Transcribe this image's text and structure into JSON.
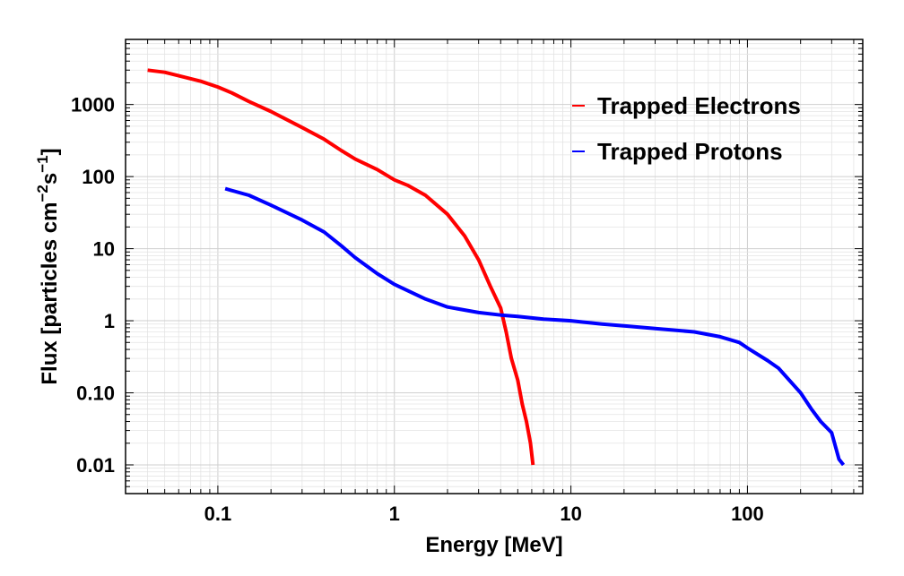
{
  "chart_data": {
    "type": "line",
    "title": "",
    "xlabel": "Energy [MeV]",
    "ylabel": "Flux [particles cm",
    "ylabel_sup1": "−2",
    "ylabel_mid": "s",
    "ylabel_sup2": "−1",
    "ylabel_end": "]",
    "x_scale": "log",
    "y_scale": "log",
    "xlim": [
      0.03,
      450
    ],
    "ylim": [
      0.004,
      8000
    ],
    "grid": true,
    "legend_position": "top-right",
    "x_ticks": [
      {
        "value": 0.1,
        "label": "0.1"
      },
      {
        "value": 1,
        "label": "1"
      },
      {
        "value": 10,
        "label": "10"
      },
      {
        "value": 100,
        "label": "100"
      }
    ],
    "y_ticks": [
      {
        "value": 0.01,
        "label": "0.01"
      },
      {
        "value": 0.1,
        "label": "0.10"
      },
      {
        "value": 1,
        "label": "1"
      },
      {
        "value": 10,
        "label": "10"
      },
      {
        "value": 100,
        "label": "100"
      },
      {
        "value": 1000,
        "label": "1000"
      }
    ],
    "series": [
      {
        "name": "Trapped Electrons",
        "color": "#ff0000",
        "x": [
          0.04,
          0.05,
          0.06,
          0.08,
          0.1,
          0.12,
          0.15,
          0.2,
          0.3,
          0.4,
          0.5,
          0.6,
          0.8,
          1.0,
          1.2,
          1.5,
          2.0,
          2.5,
          3.0,
          3.5,
          4.0,
          4.3,
          4.6,
          5.0,
          5.3,
          5.6,
          5.9,
          6.1
        ],
        "values": [
          3000,
          2800,
          2500,
          2100,
          1750,
          1450,
          1100,
          800,
          480,
          330,
          230,
          175,
          125,
          90,
          75,
          55,
          30,
          15,
          7,
          3,
          1.5,
          0.7,
          0.3,
          0.15,
          0.07,
          0.04,
          0.02,
          0.01
        ]
      },
      {
        "name": "Trapped Protons",
        "color": "#0000ff",
        "x": [
          0.11,
          0.15,
          0.2,
          0.3,
          0.4,
          0.5,
          0.6,
          0.8,
          1.0,
          1.5,
          2.0,
          3.0,
          4.0,
          5.0,
          7.0,
          10,
          15,
          20,
          30,
          50,
          70,
          90,
          100,
          130,
          150,
          200,
          230,
          260,
          300,
          330,
          350
        ],
        "values": [
          68,
          55,
          40,
          25,
          17,
          11,
          7.5,
          4.5,
          3.2,
          2.0,
          1.55,
          1.3,
          1.2,
          1.15,
          1.05,
          1.0,
          0.9,
          0.85,
          0.78,
          0.7,
          0.6,
          0.5,
          0.42,
          0.28,
          0.22,
          0.1,
          0.06,
          0.04,
          0.028,
          0.012,
          0.01
        ]
      }
    ]
  }
}
